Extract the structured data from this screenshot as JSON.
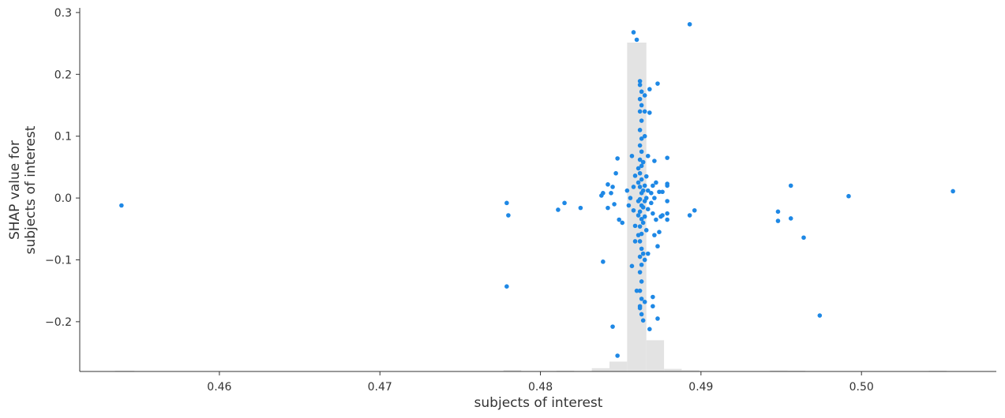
{
  "chart_data": {
    "type": "scatter",
    "title": "",
    "xlabel": "subjects of interest",
    "ylabel_lines": [
      "SHAP value for",
      "subjects of interest"
    ],
    "xlim": [
      0.4513,
      0.5084
    ],
    "ylim": [
      -0.2805,
      0.3075
    ],
    "x_ticks": [
      0.46,
      0.47,
      0.48,
      0.49,
      0.5
    ],
    "x_tick_labels": [
      "0.46",
      "0.47",
      "0.48",
      "0.49",
      "0.50"
    ],
    "y_ticks": [
      0.3,
      0.2,
      0.1,
      0.0,
      -0.1,
      -0.2
    ],
    "y_tick_labels": [
      "0.3",
      "0.2",
      "0.1",
      "0.0",
      "−0.1",
      "−0.2"
    ],
    "grid": false,
    "colors": {
      "points": "#1e88e5",
      "histogram": "#e3e3e3",
      "axes": "#333333"
    },
    "histogram": [
      {
        "x0": 0.4535,
        "x1": 0.4547,
        "h": 0.002
      },
      {
        "x0": 0.4777,
        "x1": 0.4788,
        "h": 0.004
      },
      {
        "x0": 0.481,
        "x1": 0.4821,
        "h": 0.002
      },
      {
        "x0": 0.4832,
        "x1": 0.4843,
        "h": 0.01
      },
      {
        "x0": 0.4843,
        "x1": 0.4854,
        "h": 0.03
      },
      {
        "x0": 0.4854,
        "x1": 0.4866,
        "h": 1.0
      },
      {
        "x0": 0.4866,
        "x1": 0.4877,
        "h": 0.095
      },
      {
        "x0": 0.4877,
        "x1": 0.4888,
        "h": 0.008
      },
      {
        "x0": 0.4888,
        "x1": 0.4899,
        "h": 0.004
      },
      {
        "x0": 0.4943,
        "x1": 0.4954,
        "h": 0.003
      },
      {
        "x0": 0.4954,
        "x1": 0.4965,
        "h": 0.002
      },
      {
        "x0": 0.5042,
        "x1": 0.5053,
        "h": 0.002
      }
    ],
    "points": [
      [
        0.4539,
        -0.012
      ],
      [
        0.4779,
        -0.008
      ],
      [
        0.478,
        -0.028
      ],
      [
        0.4779,
        -0.143
      ],
      [
        0.4811,
        -0.019
      ],
      [
        0.4815,
        -0.008
      ],
      [
        0.4825,
        -0.016
      ],
      [
        0.4838,
        0.004
      ],
      [
        0.4839,
        0.008
      ],
      [
        0.4842,
        0.022
      ],
      [
        0.4845,
        0.018
      ],
      [
        0.4844,
        0.008
      ],
      [
        0.4847,
        0.04
      ],
      [
        0.4848,
        0.064
      ],
      [
        0.4842,
        -0.016
      ],
      [
        0.4846,
        -0.01
      ],
      [
        0.4849,
        -0.035
      ],
      [
        0.4851,
        -0.04
      ],
      [
        0.4839,
        -0.103
      ],
      [
        0.4845,
        -0.208
      ],
      [
        0.4848,
        -0.255
      ],
      [
        0.4854,
        0.012
      ],
      [
        0.4856,
        0.0
      ],
      [
        0.4855,
        -0.012
      ],
      [
        0.4857,
        0.068
      ],
      [
        0.4858,
        0.268
      ],
      [
        0.486,
        0.256
      ],
      [
        0.4857,
        -0.11
      ],
      [
        0.4859,
        -0.07
      ],
      [
        0.486,
        -0.15
      ],
      [
        0.4862,
        -0.175
      ],
      [
        0.4859,
        0.036
      ],
      [
        0.4858,
        0.018
      ],
      [
        0.4858,
        -0.02
      ],
      [
        0.4859,
        -0.045
      ],
      [
        0.4862,
        0.189
      ],
      [
        0.4862,
        0.183
      ],
      [
        0.4863,
        0.172
      ],
      [
        0.4862,
        0.16
      ],
      [
        0.4863,
        0.15
      ],
      [
        0.4862,
        0.14
      ],
      [
        0.4863,
        0.125
      ],
      [
        0.4862,
        0.11
      ],
      [
        0.4863,
        0.096
      ],
      [
        0.4862,
        0.085
      ],
      [
        0.4863,
        0.075
      ],
      [
        0.4862,
        0.062
      ],
      [
        0.4863,
        0.052
      ],
      [
        0.4862,
        0.04
      ],
      [
        0.4863,
        0.03
      ],
      [
        0.4862,
        0.018
      ],
      [
        0.4863,
        0.008
      ],
      [
        0.4862,
        -0.002
      ],
      [
        0.4863,
        -0.012
      ],
      [
        0.4862,
        -0.022
      ],
      [
        0.4863,
        -0.034
      ],
      [
        0.4862,
        -0.046
      ],
      [
        0.4863,
        -0.058
      ],
      [
        0.4862,
        -0.07
      ],
      [
        0.4863,
        -0.082
      ],
      [
        0.4862,
        -0.095
      ],
      [
        0.4863,
        -0.108
      ],
      [
        0.4862,
        -0.12
      ],
      [
        0.4863,
        -0.135
      ],
      [
        0.4862,
        -0.15
      ],
      [
        0.4863,
        -0.163
      ],
      [
        0.4862,
        -0.178
      ],
      [
        0.4863,
        -0.188
      ],
      [
        0.4864,
        -0.198
      ],
      [
        0.4861,
        0.025
      ],
      [
        0.4864,
        0.012
      ],
      [
        0.4861,
        -0.005
      ],
      [
        0.4864,
        -0.015
      ],
      [
        0.4861,
        -0.028
      ],
      [
        0.4864,
        -0.04
      ],
      [
        0.4861,
        0.048
      ],
      [
        0.4864,
        0.058
      ],
      [
        0.4861,
        -0.06
      ],
      [
        0.4864,
        -0.09
      ],
      [
        0.4865,
        0.166
      ],
      [
        0.4865,
        0.14
      ],
      [
        0.4865,
        0.1
      ],
      [
        0.4865,
        0.02
      ],
      [
        0.4865,
        -0.005
      ],
      [
        0.4865,
        -0.03
      ],
      [
        0.4865,
        -0.1
      ],
      [
        0.4865,
        -0.168
      ],
      [
        0.4866,
        0.0
      ],
      [
        0.4867,
        0.012
      ],
      [
        0.4867,
        -0.018
      ],
      [
        0.4866,
        0.035
      ],
      [
        0.4866,
        -0.052
      ],
      [
        0.4867,
        0.068
      ],
      [
        0.4867,
        -0.09
      ],
      [
        0.4868,
        0.138
      ],
      [
        0.4868,
        0.176
      ],
      [
        0.4868,
        -0.212
      ],
      [
        0.4869,
        0.008
      ],
      [
        0.4869,
        -0.008
      ],
      [
        0.487,
        -0.025
      ],
      [
        0.487,
        0.02
      ],
      [
        0.487,
        -0.175
      ],
      [
        0.487,
        -0.16
      ],
      [
        0.4871,
        0.06
      ],
      [
        0.4871,
        -0.06
      ],
      [
        0.4871,
        0.0
      ],
      [
        0.4872,
        0.025
      ],
      [
        0.4872,
        -0.035
      ],
      [
        0.4873,
        0.185
      ],
      [
        0.4873,
        -0.078
      ],
      [
        0.4873,
        -0.195
      ],
      [
        0.4874,
        0.01
      ],
      [
        0.4874,
        -0.055
      ],
      [
        0.4875,
        -0.03
      ],
      [
        0.4876,
        0.01
      ],
      [
        0.4879,
        0.065
      ],
      [
        0.4879,
        0.023
      ],
      [
        0.4879,
        0.02
      ],
      [
        0.4879,
        -0.005
      ],
      [
        0.4879,
        -0.025
      ],
      [
        0.4879,
        -0.035
      ],
      [
        0.4876,
        -0.028
      ],
      [
        0.4893,
        0.281
      ],
      [
        0.4893,
        -0.028
      ],
      [
        0.4896,
        -0.02
      ],
      [
        0.4948,
        -0.022
      ],
      [
        0.4948,
        -0.037
      ],
      [
        0.4956,
        0.02
      ],
      [
        0.4956,
        -0.033
      ],
      [
        0.4964,
        -0.064
      ],
      [
        0.4974,
        -0.19
      ],
      [
        0.4992,
        0.003
      ],
      [
        0.5057,
        0.011
      ]
    ]
  }
}
